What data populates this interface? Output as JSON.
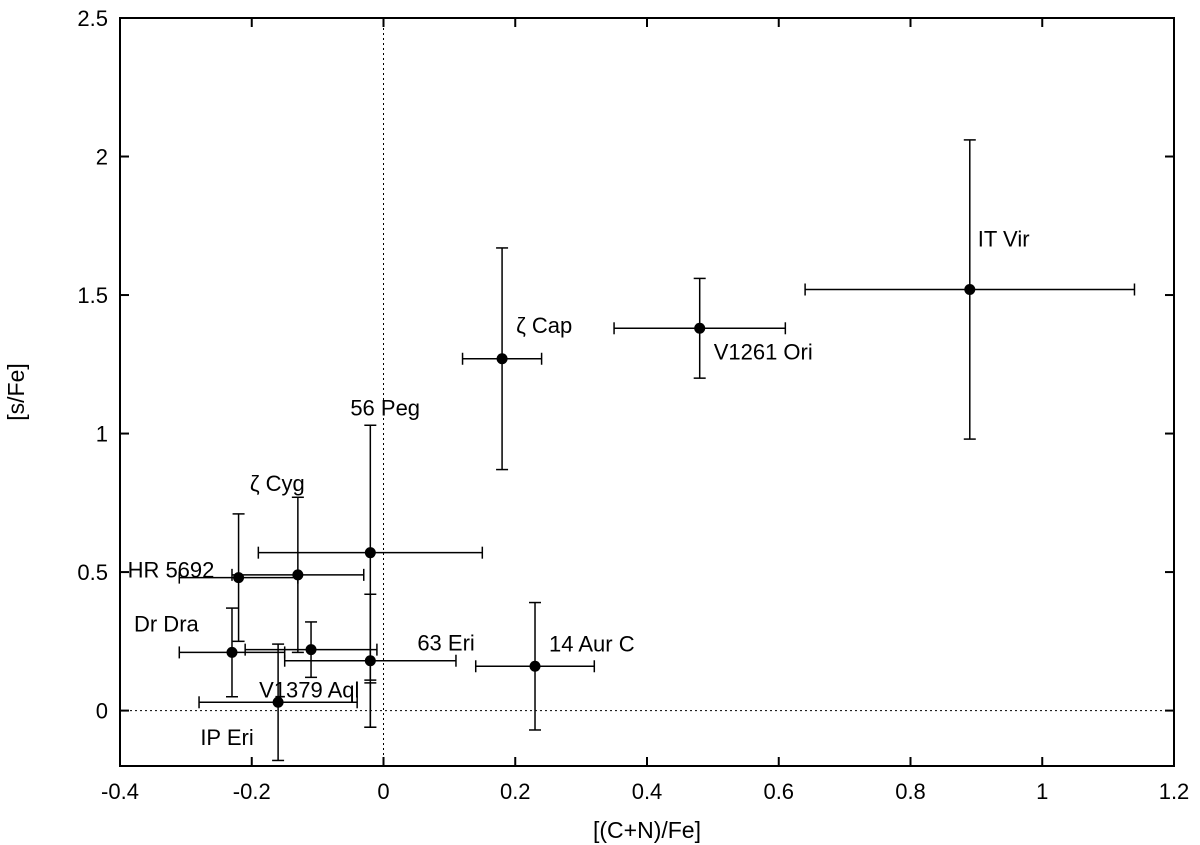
{
  "chart_data": {
    "type": "scatter",
    "title": "",
    "xlabel": "[(C+N)/Fe]",
    "ylabel": "[s/Fe]",
    "xlim": [
      -0.4,
      1.2
    ],
    "ylim": [
      -0.2,
      2.5
    ],
    "xticks": [
      -0.4,
      -0.2,
      0,
      0.2,
      0.4,
      0.6,
      0.8,
      1,
      1.2
    ],
    "yticks": [
      0,
      0.5,
      1,
      1.5,
      2,
      2.5
    ],
    "grid": false,
    "reference_lines": {
      "x": 0,
      "y": 0,
      "style": "dotted"
    },
    "points": [
      {
        "label": "IT Vir",
        "x": 0.89,
        "y": 1.52,
        "xerr": [
          0.25,
          0.25
        ],
        "yerr": [
          0.54,
          0.54
        ]
      },
      {
        "label": "V1261 Ori",
        "x": 0.48,
        "y": 1.38,
        "xerr": [
          0.13,
          0.13
        ],
        "yerr": [
          0.18,
          0.18
        ]
      },
      {
        "label": "ζ Cap",
        "x": 0.18,
        "y": 1.27,
        "xerr": [
          0.06,
          0.06
        ],
        "yerr": [
          0.4,
          0.4
        ]
      },
      {
        "label": "56 Peg",
        "x": -0.02,
        "y": 0.57,
        "xerr": [
          0.17,
          0.17
        ],
        "yerr": [
          0.46,
          0.46
        ]
      },
      {
        "label": "ζ Cyg",
        "x": -0.13,
        "y": 0.49,
        "xerr": [
          0.1,
          0.1
        ],
        "yerr": [
          0.28,
          0.28
        ]
      },
      {
        "label": "HR 5692",
        "x": -0.22,
        "y": 0.48,
        "xerr": [
          0.09,
          0.09
        ],
        "yerr": [
          0.23,
          0.23
        ]
      },
      {
        "label": "Dr Dra",
        "x": -0.23,
        "y": 0.21,
        "xerr": [
          0.08,
          0.08
        ],
        "yerr": [
          0.16,
          0.16
        ]
      },
      {
        "label": "",
        "x": -0.11,
        "y": 0.22,
        "xerr": [
          0.1,
          0.1
        ],
        "yerr": [
          0.1,
          0.1
        ]
      },
      {
        "label": "63 Eri",
        "x": -0.02,
        "y": 0.18,
        "xerr": [
          0.13,
          0.13
        ],
        "yerr": [
          0.24,
          0.24
        ]
      },
      {
        "label": "14 Aur C",
        "x": 0.23,
        "y": 0.16,
        "xerr": [
          0.09,
          0.09
        ],
        "yerr": [
          0.23,
          0.23
        ]
      },
      {
        "label": "V1379 Aql",
        "x": -0.16,
        "y": 0.03,
        "xerr": [
          0.12,
          0.12
        ],
        "yerr": [
          0.21,
          0.21
        ]
      },
      {
        "label": "IP Eri",
        "x": -0.02,
        "y": 0.02,
        "xerr": [
          0,
          0
        ],
        "yerr": [
          0.08,
          0.08
        ]
      }
    ]
  }
}
